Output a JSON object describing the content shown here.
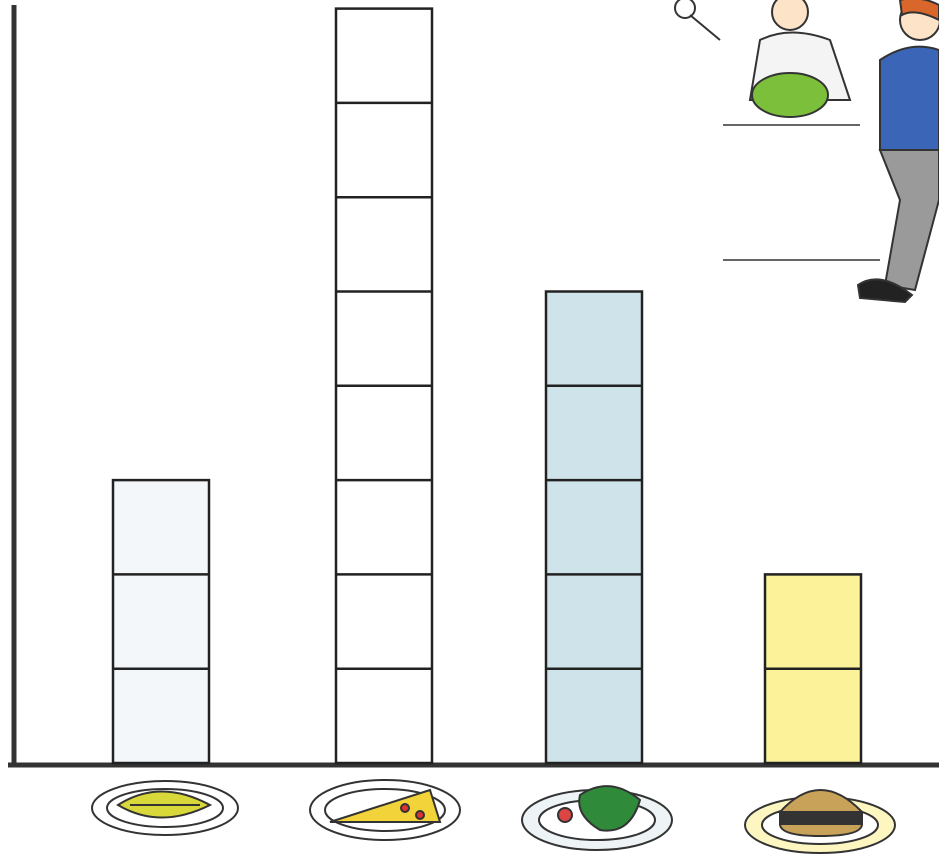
{
  "chart_data": {
    "type": "bar",
    "categories": [
      null,
      null,
      null,
      null
    ],
    "values": [
      3,
      8,
      5,
      2
    ],
    "colors": [
      "#f3f7fa",
      "#ffffff",
      "#cfe4ea",
      "#fbf29a"
    ]
  }
}
